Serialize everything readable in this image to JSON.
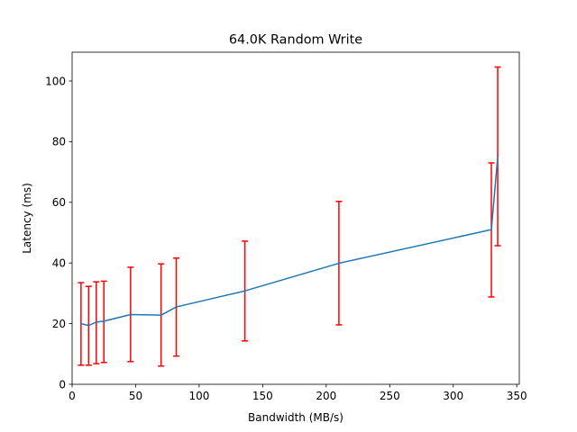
{
  "chart_data": {
    "type": "line",
    "title": "64.0K  Random Write",
    "xlabel": "Bandwidth (MB/s)",
    "ylabel": "Latency (ms)",
    "xlim": [
      0,
      352
    ],
    "ylim": [
      0,
      109.5
    ],
    "xticks": [
      0,
      50,
      100,
      150,
      200,
      250,
      300,
      350
    ],
    "yticks": [
      0,
      20,
      40,
      60,
      80,
      100
    ],
    "grid": false,
    "line_color": "#1f77b4",
    "error_color": "#ff0000",
    "series": [
      {
        "x": [
          7,
          13,
          19,
          25,
          46,
          70,
          82,
          136,
          210,
          330,
          335
        ],
        "y": [
          20.0,
          19.4,
          20.5,
          20.8,
          23.0,
          22.8,
          25.5,
          30.8,
          39.9,
          51.0,
          75.0
        ],
        "y_low": [
          6.3,
          6.3,
          6.8,
          7.2,
          7.5,
          6.0,
          9.3,
          14.3,
          19.6,
          28.8,
          45.7
        ],
        "y_high": [
          33.5,
          32.3,
          33.8,
          34.0,
          38.6,
          39.7,
          41.6,
          47.2,
          60.3,
          73.0,
          104.6
        ]
      }
    ]
  }
}
